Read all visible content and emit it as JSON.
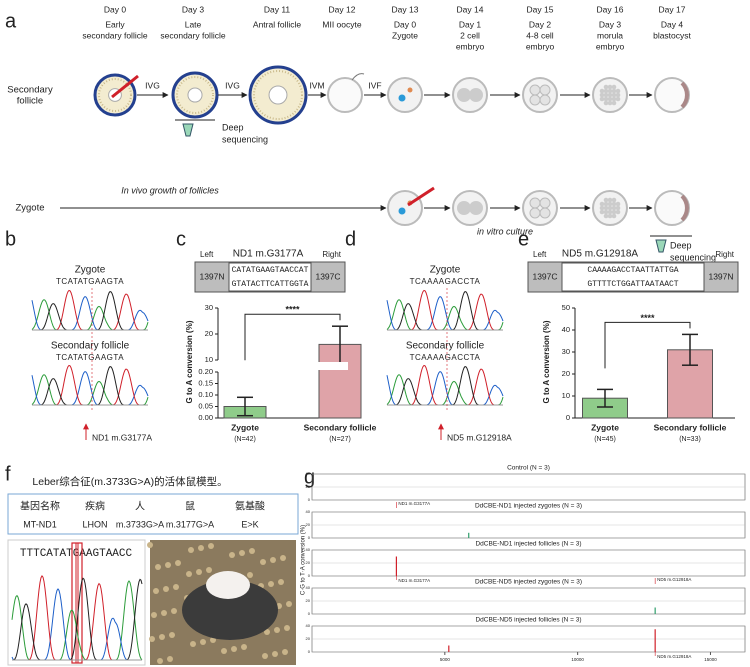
{
  "panel_a": {
    "label": "a",
    "days": [
      "Day 0",
      "Day 3",
      "Day 11",
      "Day 12",
      "Day 13",
      "Day 14",
      "Day 15",
      "Day 16",
      "Day 17"
    ],
    "stages": [
      [
        "Early",
        "secondary follicle"
      ],
      [
        "Late",
        "secondary follicle"
      ],
      [
        "Antral follicle"
      ],
      [
        "MII oocyte"
      ],
      [
        "Day 0",
        "Zygote"
      ],
      [
        "Day 1",
        "2 cell",
        "embryo"
      ],
      [
        "Day 2",
        "4-8 cell",
        "embryo"
      ],
      [
        "Day 3",
        "morula",
        "embryo"
      ],
      [
        "Day 4",
        "blastocyst"
      ]
    ],
    "rows": [
      [
        "Secondary",
        "follicle"
      ],
      [
        "Zygote"
      ]
    ],
    "arrows": [
      "IVG",
      "IVG",
      "IVM",
      "IVF"
    ],
    "deep_sequencing_1": [
      "Deep",
      "sequencing"
    ],
    "in_vivo": "In vivo growth of follicles",
    "in_vitro": "in vitro culture",
    "deep_sequencing_2": [
      "Deep",
      "sequencing"
    ]
  },
  "panel_b": {
    "label": "b",
    "top_title": "Zygote",
    "top_seq": "TCATATGAAGTA",
    "bottom_title": "Secondary follicle",
    "bottom_seq": "TCATATGAAGTA",
    "site": "ND1 m.G3177A"
  },
  "panel_c": {
    "label": "c",
    "box": {
      "left": "Left",
      "title": "ND1 m.G3177A",
      "right": "Right",
      "left_block": "1397N",
      "seq_top": "CATATGAAGTAACCAT",
      "seq_bottom": "GTATACTTCATTGGTA",
      "right_block": "1397C"
    },
    "chart": {
      "type": "bar",
      "ylabel": "G to A conversion (%)",
      "significance": "****",
      "categories": [
        "Zygote",
        "Secondary follicle"
      ],
      "n_labels": [
        "(N=42)",
        "(N=27)"
      ],
      "values": [
        0.05,
        16
      ],
      "errors": [
        0.04,
        7
      ],
      "colors": [
        "#8fcc8a",
        "#dfa3a8"
      ],
      "ylim_lower": [
        0,
        0.2
      ],
      "yticks_lower": [
        {
          "value": 0,
          "label": "0.00"
        },
        {
          "value": 0.05,
          "label": "0.05"
        },
        {
          "value": 0.1,
          "label": "0.10"
        },
        {
          "value": 0.15,
          "label": "0.15"
        },
        {
          "value": 0.2,
          "label": "0.20"
        }
      ],
      "ylim_upper": [
        10,
        30
      ],
      "yticks_upper": [
        10,
        20,
        30
      ]
    }
  },
  "panel_d": {
    "label": "d",
    "top_title": "Zygote",
    "top_seq": "TCAAAAGACCTA",
    "bottom_title": "Secondary follicle",
    "bottom_seq": "TCAAAAGACCTA",
    "site": "ND5 m.G12918A"
  },
  "panel_e": {
    "label": "e",
    "box": {
      "left": "Left",
      "title": "ND5 m.G12918A",
      "right": "Right",
      "left_block": "1397C",
      "seq_top": "CAAAAGACCTAATTATTGA",
      "seq_bottom": "GTTTTCTGGATTAATAACT",
      "right_block": "1397N"
    },
    "chart": {
      "type": "bar",
      "ylabel": "G to A conversion (%)",
      "significance": "****",
      "categories": [
        "Zygote",
        "Secondary follicle"
      ],
      "n_labels": [
        "(N=45)",
        "(N=33)"
      ],
      "values": [
        9,
        31
      ],
      "errors": [
        4,
        7
      ],
      "colors": [
        "#8fcc8a",
        "#dfa3a8"
      ],
      "ylim": [
        0,
        50
      ],
      "yticks": [
        0,
        10,
        20,
        30,
        40,
        50
      ]
    }
  },
  "panel_f": {
    "label": "f",
    "title": "Leber综合征(m.3733G>A)的活体鼠模型。",
    "table": {
      "header": [
        "基因名称",
        "疾病",
        "人",
        "鼠",
        "氨基酸"
      ],
      "row": [
        "MT-ND1",
        "LHON",
        "m.3733G>A",
        "m.3177G>A",
        "E>K"
      ]
    },
    "sequence": "TTTCATATGAAGTAACC"
  },
  "panel_g": {
    "label": "g",
    "ylabel": "C·G to T·A conversion (%)",
    "xlim": [
      0,
      16300
    ],
    "xticks": [
      5000,
      10000,
      15000
    ],
    "tracks": [
      {
        "title": "Control (N = 3)",
        "ylim": [
          0,
          40
        ],
        "yticks": [
          0,
          20,
          40
        ],
        "spikes": []
      },
      {
        "title": "DdCBE-ND1 injected zygotes (N = 3)",
        "ylim": [
          0,
          40
        ],
        "yticks": [
          0,
          20,
          40
        ],
        "spikes": [
          {
            "x": 5900,
            "value": 8,
            "color": "#2e9e6b"
          }
        ]
      },
      {
        "title": "DdCBE-ND1 injected follicles (N = 3)",
        "ylim": [
          0,
          40
        ],
        "yticks": [
          0,
          20,
          40
        ],
        "spikes": [
          {
            "x": 3177,
            "value": 30,
            "color": "#d0202a"
          }
        ],
        "annotations": [
          {
            "text": "ND1 m.G3177A",
            "x": 3177
          }
        ]
      },
      {
        "title": "DdCBE-ND5 injected zygotes (N = 3)",
        "ylim": [
          0,
          40
        ],
        "yticks": [
          0,
          20,
          40
        ],
        "spikes": [
          {
            "x": 12918,
            "value": 10,
            "color": "#2e9e6b"
          }
        ]
      },
      {
        "title": "DdCBE-ND5 injected follicles (N = 3)",
        "ylim": [
          0,
          40
        ],
        "yticks": [
          0,
          20,
          40
        ],
        "spikes": [
          {
            "x": 5150,
            "value": 10,
            "color": "#d0202a"
          },
          {
            "x": 12918,
            "value": 35,
            "color": "#d0202a"
          }
        ],
        "annotations": [
          {
            "text": "ND5 m.G12918A",
            "x": 12918
          }
        ]
      }
    ],
    "track2_annotation": {
      "text": "ND1 m.G3177A",
      "x": 3177
    },
    "track4_annotation": {
      "text": "ND5 m.G12918A",
      "x": 12918
    }
  }
}
